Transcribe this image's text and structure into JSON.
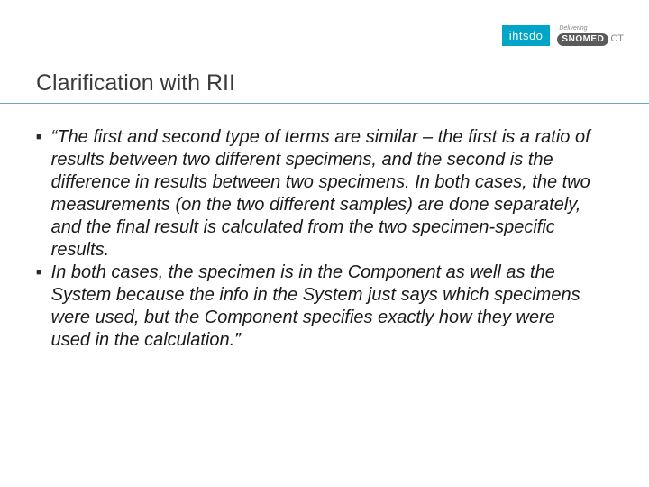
{
  "logos": {
    "ihtsdo": "ihtsdo",
    "delivering": "Delivering",
    "snomed": "SNOMED",
    "ct": "CT"
  },
  "title": "Clarification with RII",
  "bullets": [
    "“The first and second type of terms are similar – the first is a ratio of results between two different specimens, and the second is the difference in results between two specimens. In both cases, the two measurements (on the two different samples) are done separately, and the final result is calculated from the two specimen-specific results.",
    "In both cases, the specimen is in the Component as well as the System because the info in the System just says which specimens were used, but the Component specifies exactly how they were used in the calculation.”"
  ],
  "colors": {
    "accent": "#00a5c8",
    "divider": "#6aa7c4",
    "text": "#1a1a1a",
    "title": "#3a3a3a"
  }
}
